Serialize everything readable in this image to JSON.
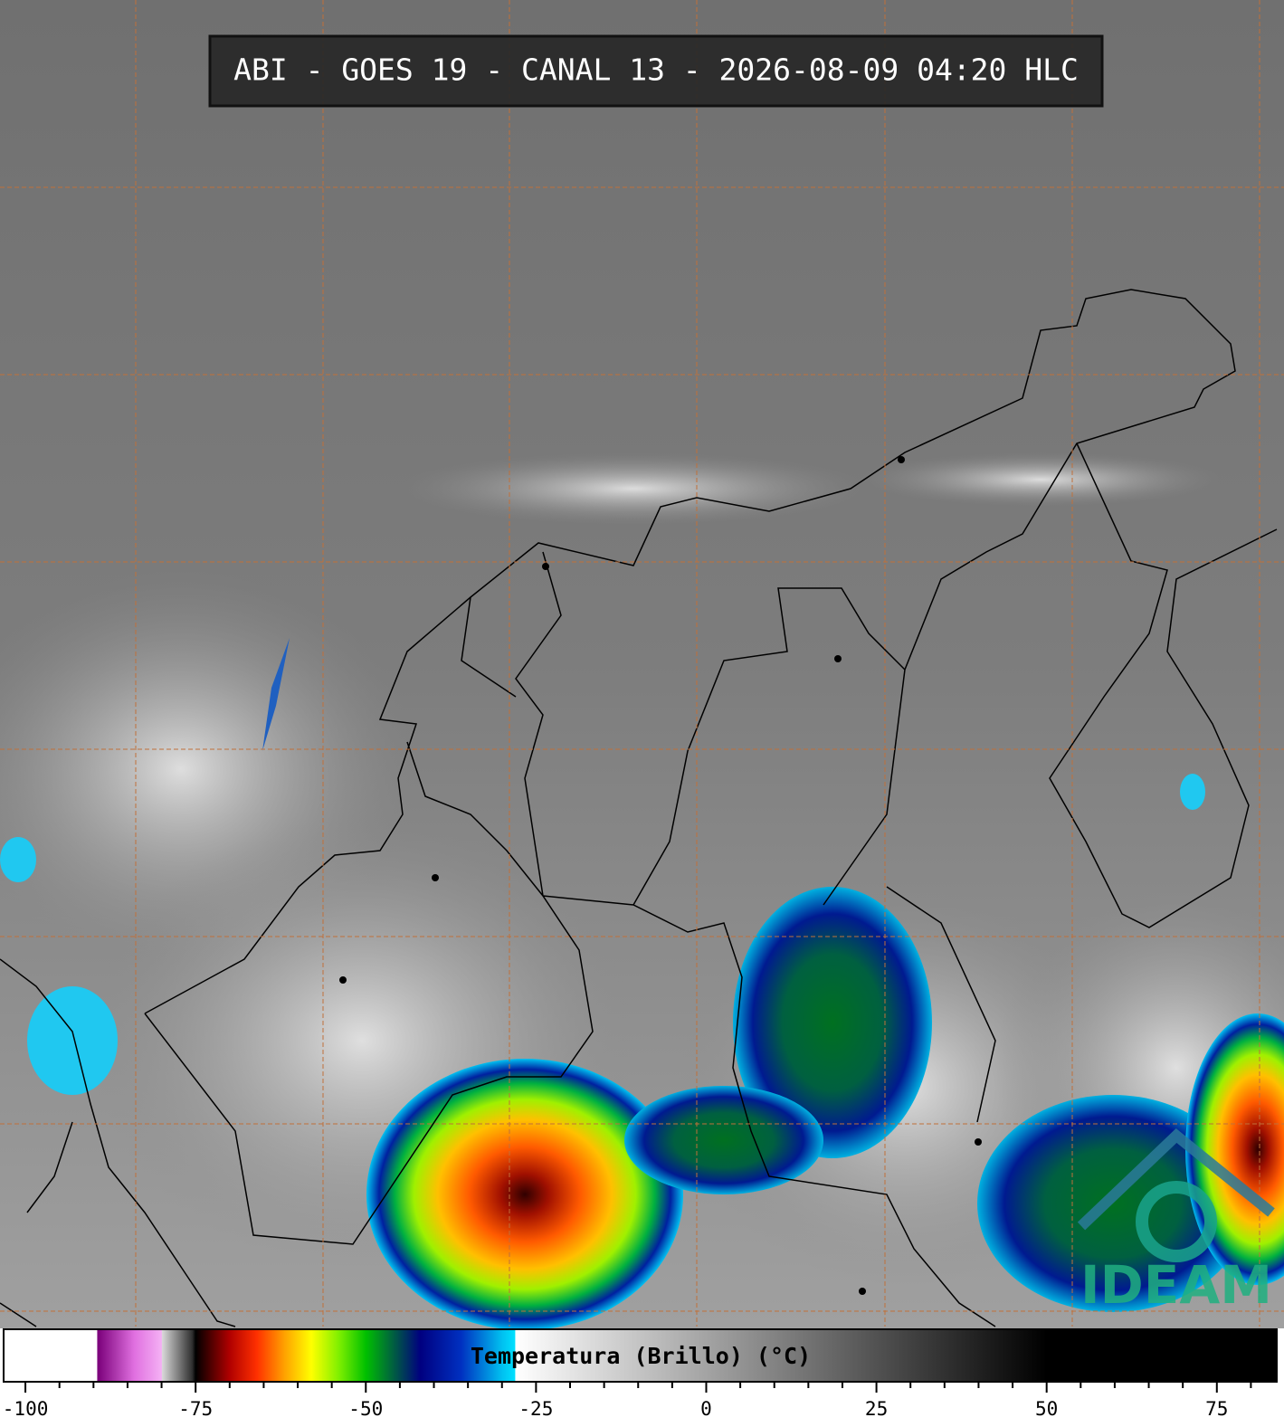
{
  "title": "ABI - GOES 19 - CANAL 13 - 2026-08-09 04:20 HLC",
  "logo": "IDEAM",
  "colorbar": {
    "label": "Temperatura (Brillo) (°C)",
    "xlim": [
      -103.2,
      83.8
    ],
    "xticks": [
      -100,
      -75,
      -50,
      -25,
      0,
      25,
      50,
      75
    ],
    "minor_ticks": [
      -95,
      -90,
      -85,
      -80,
      -70,
      -65,
      -60,
      -55,
      -45,
      -40,
      -35,
      -30,
      -20,
      -15,
      -10,
      -5,
      5,
      10,
      15,
      20,
      30,
      35,
      40,
      45,
      55,
      60,
      65,
      70,
      80
    ],
    "stops": [
      {
        "value": -89.5,
        "color": "#ffffff"
      },
      {
        "value": -89.4,
        "color": "#7a007a"
      },
      {
        "value": -84,
        "color": "#e070e0"
      },
      {
        "value": -80,
        "color": "#f4b0f4"
      },
      {
        "value": -79.9,
        "color": "#d8d8d8"
      },
      {
        "value": -75.5,
        "color": "#303030"
      },
      {
        "value": -75,
        "color": "#000000"
      },
      {
        "value": -70,
        "color": "#b00000"
      },
      {
        "value": -66,
        "color": "#ff3000"
      },
      {
        "value": -62,
        "color": "#ffa000"
      },
      {
        "value": -58,
        "color": "#ffff00"
      },
      {
        "value": -54,
        "color": "#80f000"
      },
      {
        "value": -50,
        "color": "#00c000"
      },
      {
        "value": -46,
        "color": "#006040"
      },
      {
        "value": -42,
        "color": "#000080"
      },
      {
        "value": -36,
        "color": "#0030c0"
      },
      {
        "value": -30,
        "color": "#00c0f0"
      },
      {
        "value": -28.1,
        "color": "#00e0ff"
      },
      {
        "value": -28,
        "color": "#ffffff"
      },
      {
        "value": 50,
        "color": "#000000"
      },
      {
        "value": 83.8,
        "color": "#000000"
      }
    ]
  }
}
